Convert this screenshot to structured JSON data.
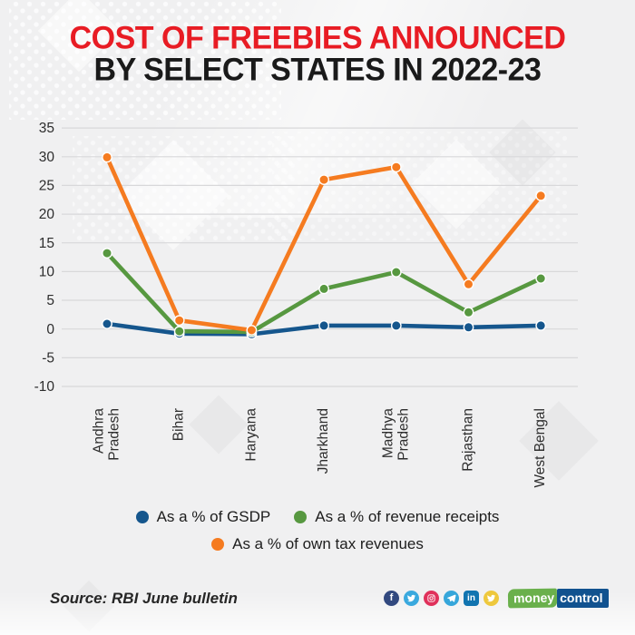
{
  "title": {
    "line1": "COST OF FREEBIES ANNOUNCED",
    "line2": "BY SELECT STATES IN 2022-23",
    "line1_color": "#e81c24",
    "line2_color": "#1a1a1a"
  },
  "chart_data": {
    "type": "line",
    "title": "Cost of freebies announced by select states in 2022-23",
    "categories": [
      [
        "Andhra",
        "Pradesh"
      ],
      [
        "Bihar"
      ],
      [
        "Haryana"
      ],
      [
        "Jharkhand"
      ],
      [
        "Madhya",
        "Pradesh"
      ],
      [
        "Rajasthan"
      ],
      [
        "West Bengal"
      ]
    ],
    "series": [
      {
        "name": "As a % of GSDP",
        "color": "#15568d",
        "values": [
          0.9,
          -0.8,
          -0.9,
          0.6,
          0.6,
          0.3,
          0.6
        ]
      },
      {
        "name": "As a % of revenue receipts",
        "color": "#579840",
        "values": [
          13.2,
          -0.4,
          -0.5,
          7.0,
          9.9,
          2.9,
          8.8
        ]
      },
      {
        "name": "As a % of own tax revenues",
        "color": "#f57b20",
        "values": [
          29.9,
          1.5,
          -0.2,
          26.0,
          28.2,
          7.8,
          23.2
        ]
      }
    ],
    "ylim": [
      -10,
      35
    ],
    "ytick_step": 5,
    "yticks": [
      35,
      30,
      25,
      20,
      15,
      10,
      5,
      0,
      -5,
      -10
    ],
    "grid": "horizontal",
    "grid_color": "#d8d8da",
    "axis_label_color": "#2d2d2d",
    "legend_position": "bottom",
    "marker": "circle"
  },
  "footer": {
    "source": "Source: RBI June bulletin",
    "social": [
      {
        "name": "facebook",
        "color": "#32497f"
      },
      {
        "name": "twitter",
        "color": "#3aa9de"
      },
      {
        "name": "instagram",
        "color": "#e0315b"
      },
      {
        "name": "telegram",
        "color": "#36a6da"
      },
      {
        "name": "linkedin",
        "color": "#1174b0"
      },
      {
        "name": "koo",
        "color": "#eec83d"
      }
    ],
    "logo": {
      "money": "money",
      "control": "control",
      "money_bg": "#6ab04c",
      "control_bg": "#11528f"
    }
  }
}
